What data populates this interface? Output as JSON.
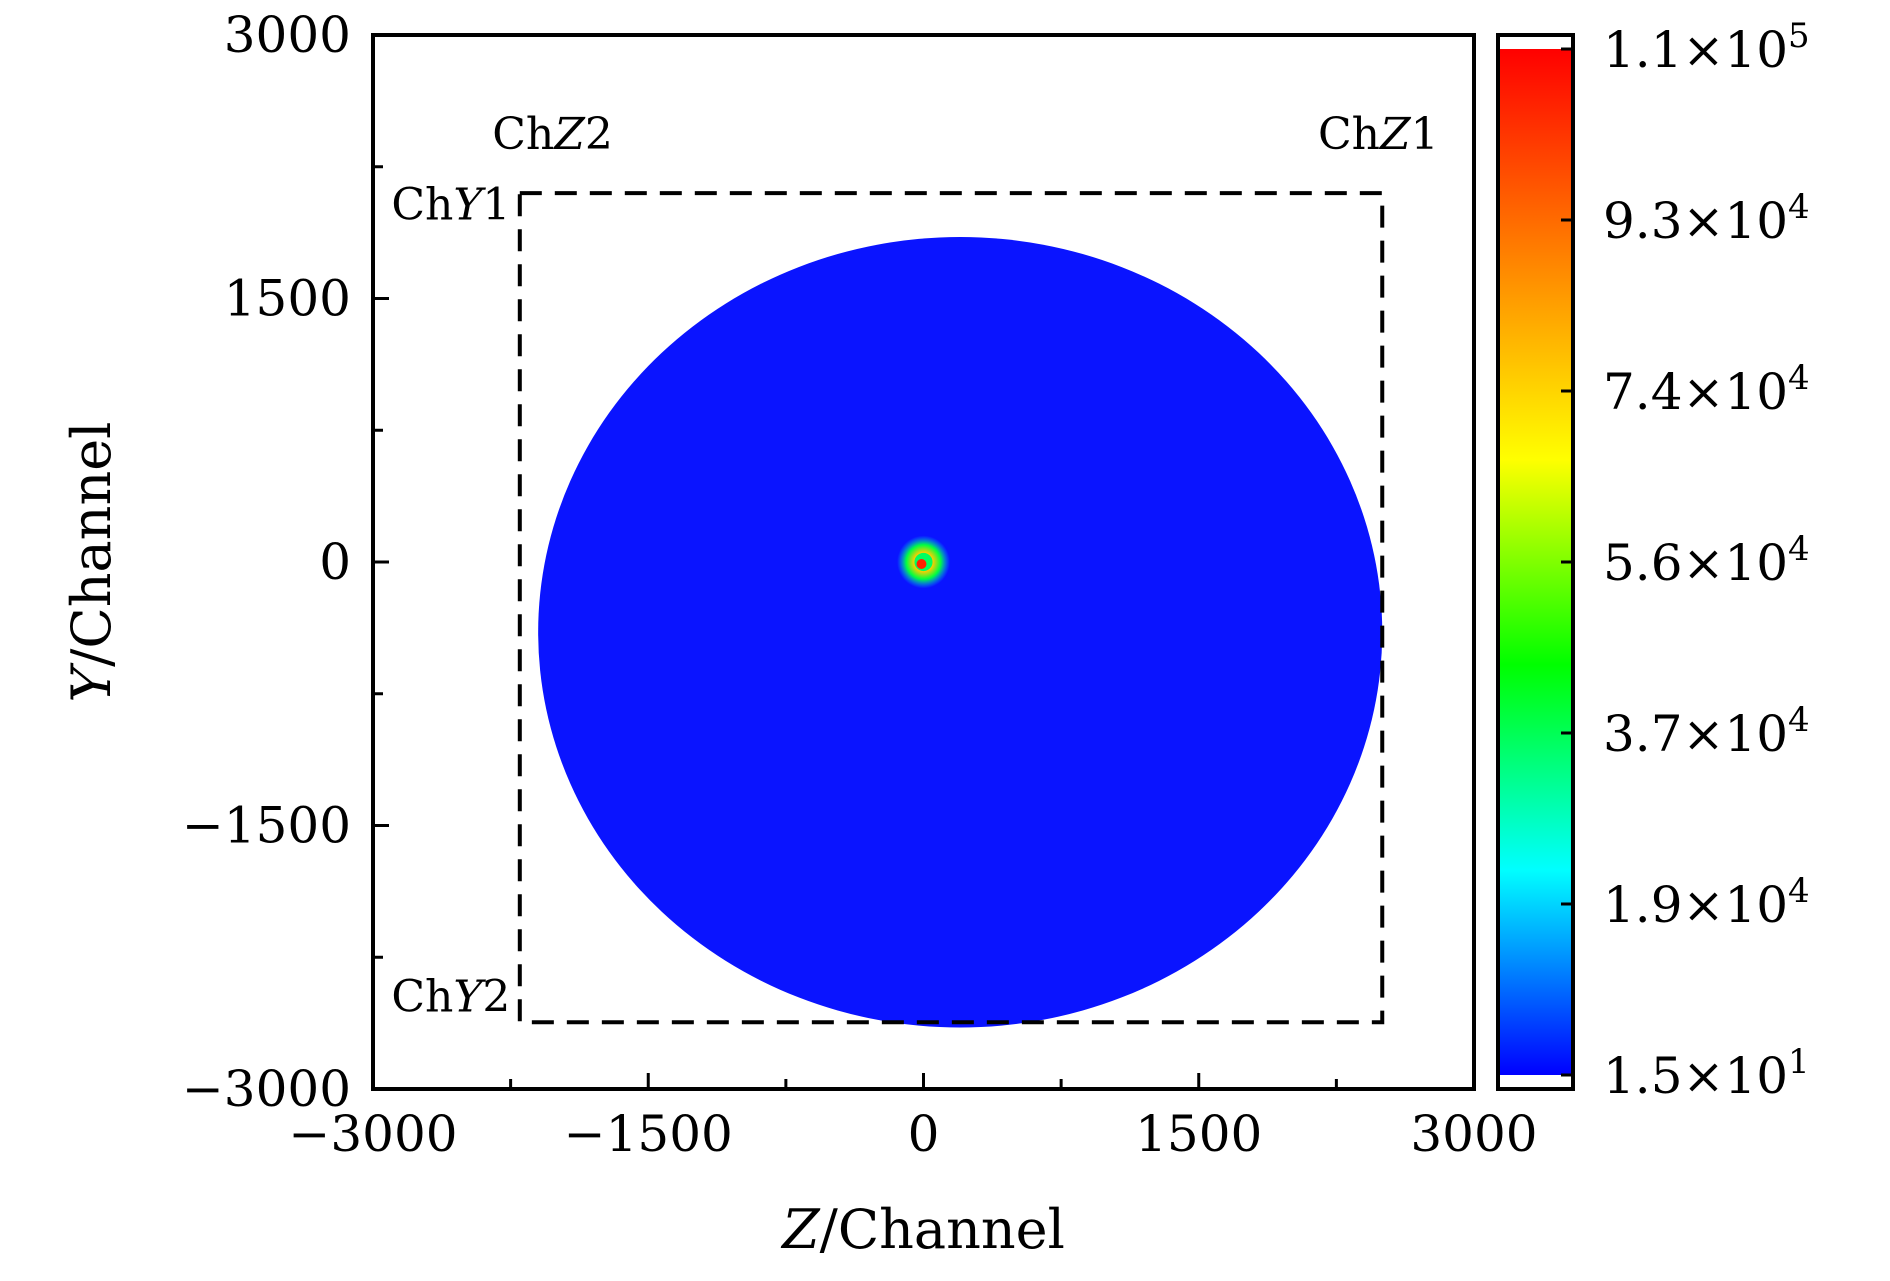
{
  "chart_data": {
    "type": "heatmap",
    "xlabel": {
      "italic": "Z",
      "rest": "/Channel"
    },
    "ylabel": {
      "italic": "Y",
      "rest": "/Channel"
    },
    "xlim": [
      -3000,
      3000
    ],
    "ylim": [
      -3000,
      3000
    ],
    "x_ticks": [
      {
        "value": -3000,
        "label": "−3000"
      },
      {
        "value": -1500,
        "label": "−1500"
      },
      {
        "value": 0,
        "label": "0"
      },
      {
        "value": 1500,
        "label": "1500"
      },
      {
        "value": 3000,
        "label": "3000"
      }
    ],
    "y_ticks": [
      {
        "value": 3000,
        "label": "3000"
      },
      {
        "value": 1500,
        "label": "1500"
      },
      {
        "value": 0,
        "label": "0"
      },
      {
        "value": -1500,
        "label": "−1500"
      },
      {
        "value": -3000,
        "label": "−3000"
      }
    ],
    "minor_tick_step": 750,
    "grid": false,
    "colorbar": {
      "min": 15,
      "max": 110000,
      "tick_labels": [
        {
          "mantissa": "1.1",
          "exponent": "5"
        },
        {
          "mantissa": "9.3",
          "exponent": "4"
        },
        {
          "mantissa": "7.4",
          "exponent": "4"
        },
        {
          "mantissa": "5.6",
          "exponent": "4"
        },
        {
          "mantissa": "3.7",
          "exponent": "4"
        },
        {
          "mantissa": "1.9",
          "exponent": "4"
        },
        {
          "mantissa": "1.5",
          "exponent": "1"
        }
      ],
      "colors": [
        "#0000ff",
        "#00ffff",
        "#00ff00",
        "#ffff00",
        "#ff8000",
        "#ff0000"
      ]
    },
    "regions": [
      {
        "name": "detector-disk",
        "shape": "ellipse",
        "center": [
          200,
          -400
        ],
        "radius_z": 2300,
        "radius_y": 2250,
        "value": 15,
        "color": "#0a14ff"
      },
      {
        "name": "central-hotspot",
        "shape": "spot",
        "center": [
          0,
          0
        ],
        "radius": 90,
        "peak_value": 110000
      }
    ],
    "boundary_box": {
      "z_min": -2200,
      "z_max": 2500,
      "y_min": -2620,
      "y_max": 2100,
      "style": "dashed"
    },
    "annotations": [
      {
        "id": "chz2",
        "plain": "Ch",
        "italic": "Z",
        "number": "2",
        "z": -2350,
        "y": 2350
      },
      {
        "id": "chz1",
        "plain": "Ch",
        "italic": "Z",
        "number": "1",
        "z": 2150,
        "y": 2350
      },
      {
        "id": "chy1",
        "plain": "Ch",
        "italic": "Y",
        "number": "1",
        "z": -2900,
        "y": 1950
      },
      {
        "id": "chy2",
        "plain": "Ch",
        "italic": "Y",
        "number": "2",
        "z": -2900,
        "y": -2560
      }
    ]
  }
}
